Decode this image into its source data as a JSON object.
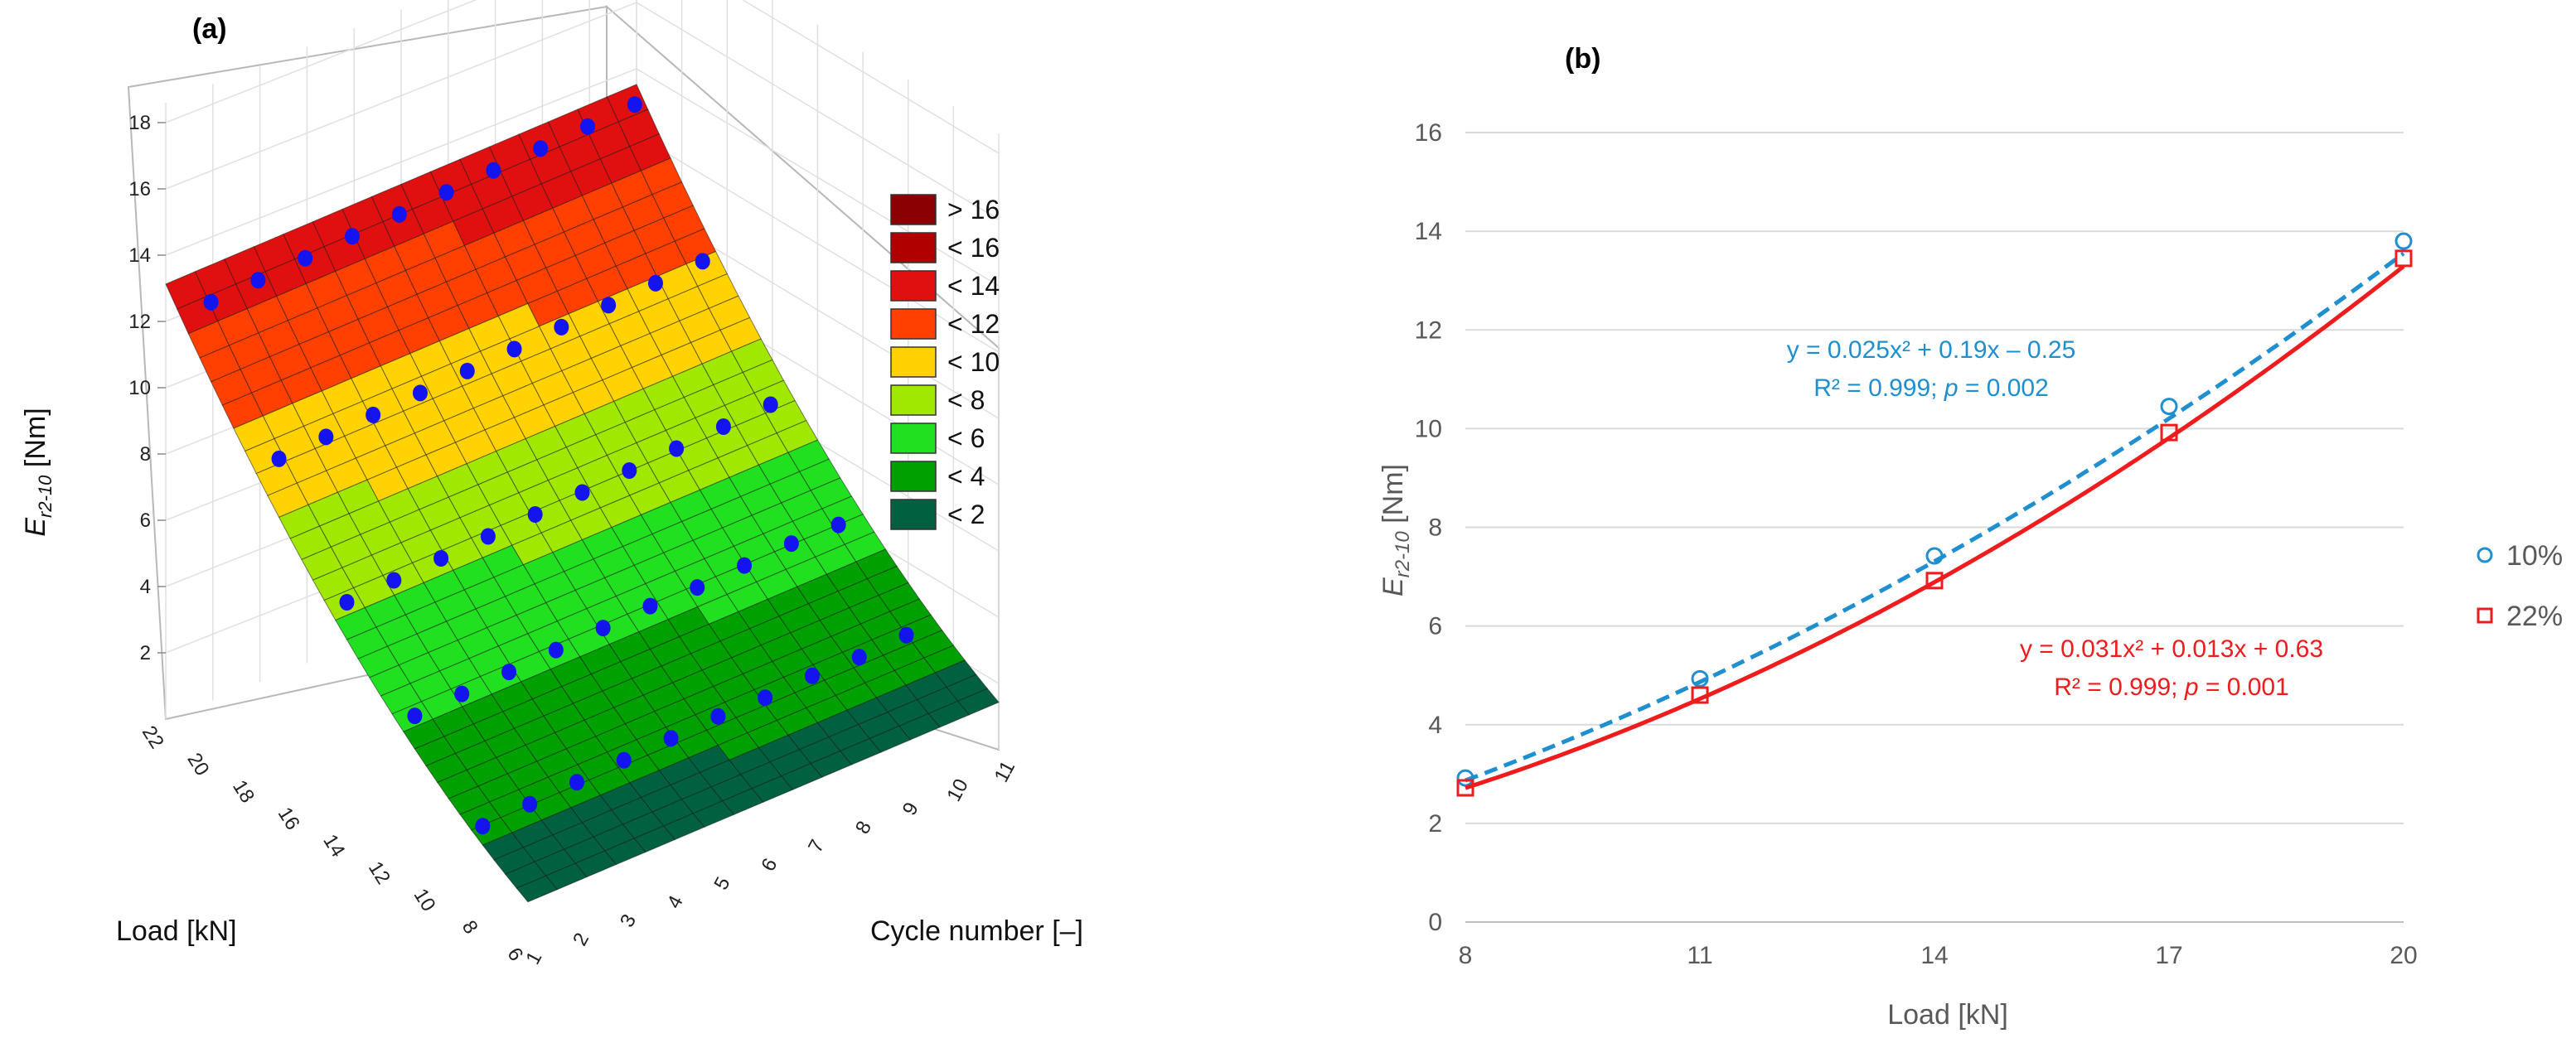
{
  "chart_data": [
    {
      "panel": "(a)",
      "type": "surface3d",
      "zlabel_main": "E",
      "zlabel_sub": "r2-10",
      "zlabel_unit": " [Nm]",
      "xlabel": "Load [kN]",
      "ylabel": "Cycle number [–]",
      "z_ticks": [
        "2",
        "4",
        "6",
        "8",
        "10",
        "12",
        "14",
        "16",
        "18"
      ],
      "load_ticks": [
        "22",
        "20",
        "18",
        "16",
        "14",
        "12",
        "10",
        "8",
        "6"
      ],
      "cycle_ticks": [
        "1",
        "2",
        "3",
        "4",
        "5",
        "6",
        "7",
        "8",
        "9",
        "10",
        "11"
      ],
      "legend": [
        {
          "label": "> 16",
          "color": "#8b0000"
        },
        {
          "label": "< 16",
          "color": "#b00000"
        },
        {
          "label": "< 14",
          "color": "#e01010"
        },
        {
          "label": "< 12",
          "color": "#ff4000"
        },
        {
          "label": "< 10",
          "color": "#ffd200"
        },
        {
          "label": "< 8",
          "color": "#a0e800"
        },
        {
          "label": "< 6",
          "color": "#20e020"
        },
        {
          "label": "< 4",
          "color": "#00a000"
        },
        {
          "label": "< 2",
          "color": "#006040"
        }
      ],
      "points": [
        {
          "load": 8,
          "values": [
            2.5,
            2.6,
            2.7,
            2.8,
            2.9,
            3.0,
            3.0,
            3.1,
            3.1,
            3.2
          ]
        },
        {
          "load": 11,
          "values": [
            4.6,
            4.7,
            4.8,
            4.9,
            5.0,
            5.1,
            5.1,
            5.2,
            5.3,
            5.3
          ]
        },
        {
          "load": 14,
          "values": [
            6.8,
            6.9,
            7.0,
            7.1,
            7.2,
            7.3,
            7.4,
            7.5,
            7.6,
            7.7
          ]
        },
        {
          "load": 17,
          "values": [
            9.9,
            10.0,
            10.1,
            10.2,
            10.3,
            10.4,
            10.5,
            10.6,
            10.7,
            10.8
          ]
        },
        {
          "load": 20,
          "values": [
            13.4,
            13.5,
            13.6,
            13.7,
            13.8,
            13.9,
            14.0,
            14.1,
            14.2,
            14.3
          ]
        }
      ]
    },
    {
      "panel": "(b)",
      "type": "line",
      "ylabel_main": "E",
      "ylabel_sub": "r2-10",
      "ylabel_unit": " [Nm]",
      "xlabel": "Load  [kN]",
      "x": [
        8,
        11,
        14,
        17,
        20
      ],
      "xlim": [
        8,
        20
      ],
      "ylim": [
        0,
        16
      ],
      "y_ticks": [
        0,
        2,
        4,
        6,
        8,
        10,
        12,
        14,
        16
      ],
      "grid": "horizontal",
      "series": [
        {
          "name": "10%",
          "color": "#1f8fd0",
          "marker": "circle",
          "line": "dashed",
          "values": [
            2.92,
            4.93,
            7.42,
            10.45,
            13.8
          ],
          "fit": {
            "a": 0.025,
            "b": 0.19,
            "c": -0.25
          },
          "equation": "y = 0.025x² + 0.19x – 0.25",
          "r2_line": "R² = 0.999; ",
          "p_label": "p",
          "p_value": " = 0.002"
        },
        {
          "name": "22%",
          "color": "#ee1c1c",
          "marker": "square",
          "line": "solid",
          "values": [
            2.72,
            4.6,
            6.92,
            9.92,
            13.45
          ],
          "fit": {
            "a": 0.031,
            "b": 0.013,
            "c": 0.63
          },
          "equation": "y = 0.031x² + 0.013x + 0.63",
          "r2_line": "R² = 0.999; ",
          "p_label": "p",
          "p_value": " = 0.001"
        }
      ]
    }
  ]
}
